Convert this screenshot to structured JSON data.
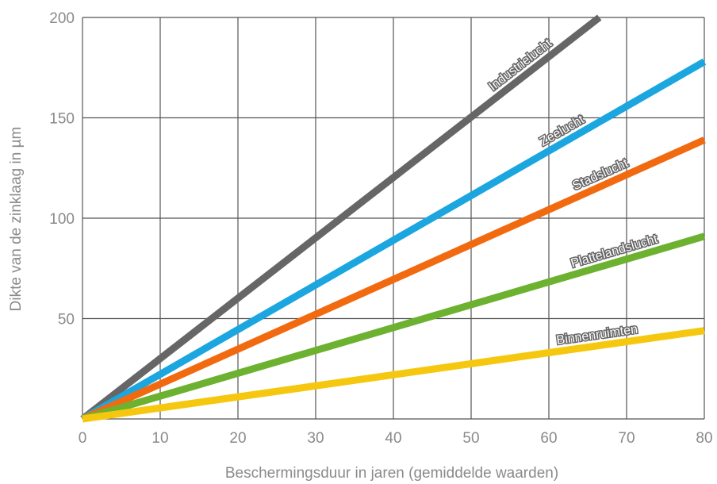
{
  "chart_data": {
    "type": "line",
    "title": "",
    "xlabel": "Beschermingsduur in jaren (gemiddelde waarden)",
    "ylabel": "Dikte van de zinklaag in  µm",
    "xlim": [
      0,
      80
    ],
    "ylim": [
      0,
      200
    ],
    "xticks": [
      0,
      10,
      20,
      30,
      40,
      50,
      60,
      70,
      80
    ],
    "yticks": [
      50,
      100,
      150,
      200
    ],
    "grid": true,
    "legend": "inline labels along lines",
    "series": [
      {
        "name": "Industrielucht",
        "color": "#666666",
        "x": [
          0,
          66.5
        ],
        "y": [
          0,
          200
        ]
      },
      {
        "name": "Zeelucht",
        "color": "#1ba6e0",
        "x": [
          0,
          80
        ],
        "y": [
          0,
          178
        ]
      },
      {
        "name": "Stadslucht",
        "color": "#f26a10",
        "x": [
          0,
          80
        ],
        "y": [
          0,
          139
        ]
      },
      {
        "name": "Plattelandslucht",
        "color": "#6cb12f",
        "x": [
          0,
          80
        ],
        "y": [
          0,
          91
        ]
      },
      {
        "name": "Binnenruimten",
        "color": "#f5c80f",
        "x": [
          0,
          80
        ],
        "y": [
          0,
          44
        ]
      }
    ]
  }
}
